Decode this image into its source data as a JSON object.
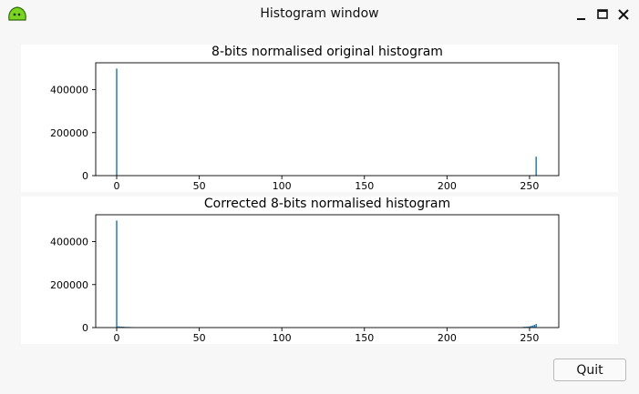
{
  "window": {
    "title": "Histogram window",
    "icons": {
      "app": "green-blob-app-icon",
      "minimize": "minimize-icon",
      "maximize": "maximize-icon",
      "close": "close-icon"
    }
  },
  "buttons": {
    "quit_label": "Quit"
  },
  "colors": {
    "bar": "#1f77b4",
    "panel": "#ffffff",
    "window": "#f7f7f7"
  },
  "chart_data": [
    {
      "type": "bar",
      "title": "8-bits normalised original histogram",
      "xlabel": "",
      "ylabel": "",
      "xlim": [
        -12.7,
        267.7
      ],
      "ylim": [
        0,
        525000
      ],
      "xticks": [
        0,
        50,
        100,
        150,
        200,
        250
      ],
      "xtick_labels": [
        "0",
        "50",
        "100",
        "150",
        "200",
        "250"
      ],
      "yticks": [
        0,
        200000,
        400000
      ],
      "ytick_labels": [
        "0",
        "200000",
        "400000"
      ],
      "x": [
        0,
        254
      ],
      "values": [
        498000,
        88000
      ]
    },
    {
      "type": "bar",
      "title": "Corrected 8-bits normalised histogram",
      "xlabel": "",
      "ylabel": "",
      "xlim": [
        -12.7,
        267.7
      ],
      "ylim": [
        0,
        525000
      ],
      "xticks": [
        0,
        50,
        100,
        150,
        200,
        250
      ],
      "xtick_labels": [
        "0",
        "50",
        "100",
        "150",
        "200",
        "250"
      ],
      "yticks": [
        0,
        200000,
        400000
      ],
      "ytick_labels": [
        "0",
        "200000",
        "400000"
      ],
      "x": [
        0,
        1,
        2,
        3,
        4,
        5,
        6,
        7,
        8,
        9,
        10,
        246,
        247,
        248,
        249,
        250,
        251,
        252,
        253,
        254
      ],
      "values": [
        498000,
        6000,
        5000,
        4500,
        4000,
        3500,
        3000,
        3000,
        2500,
        2000,
        1500,
        3000,
        3500,
        4000,
        5000,
        6000,
        8000,
        10000,
        13000,
        17000
      ]
    }
  ]
}
